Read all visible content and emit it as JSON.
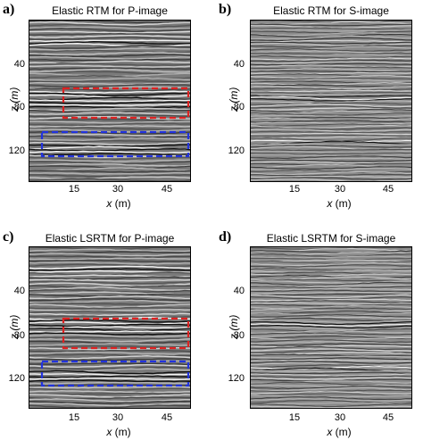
{
  "panels": [
    {
      "letter": "a)",
      "title": "Elastic RTM for P-image",
      "type": "p",
      "boxes": true
    },
    {
      "letter": "b)",
      "title": "Elastic RTM for S-image",
      "type": "s",
      "boxes": false
    },
    {
      "letter": "c)",
      "title": "Elastic LSRTM for P-image",
      "type": "p",
      "boxes": true
    },
    {
      "letter": "d)",
      "title": "Elastic LSRTM for S-image",
      "type": "s",
      "boxes": false
    }
  ],
  "y_ticks": [
    "40",
    "80",
    "120"
  ],
  "x_ticks": [
    "15",
    "30",
    "45"
  ],
  "y_axis_label": "z (m)",
  "x_axis_label_var": "x",
  "x_axis_label_unit": " (m)",
  "colors": {
    "red_box": "#dd2222",
    "blue_box": "#2233dd"
  }
}
